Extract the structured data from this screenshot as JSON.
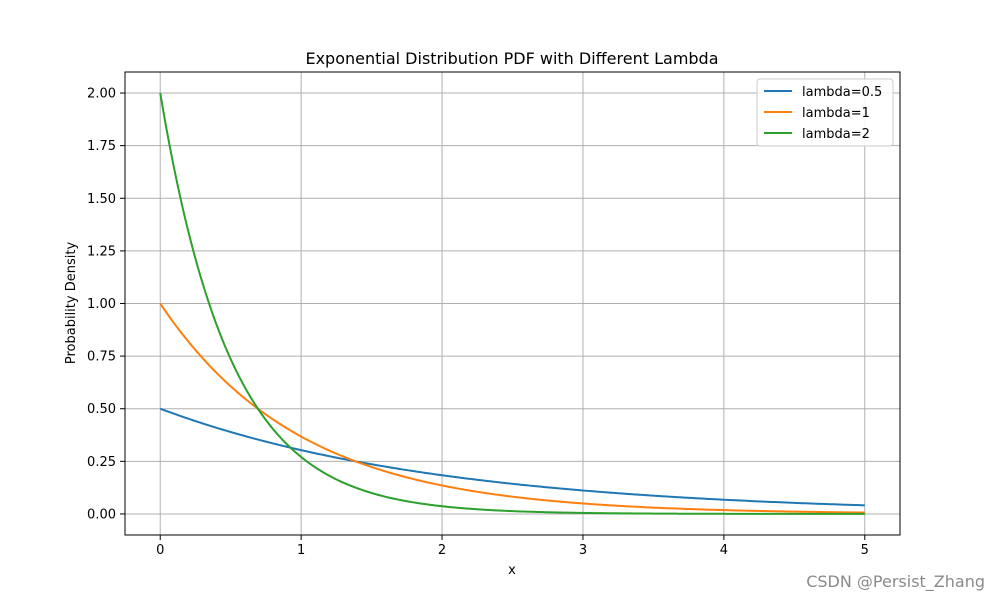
{
  "chart_data": {
    "type": "line",
    "title": "Exponential Distribution PDF with Different Lambda",
    "xlabel": "x",
    "ylabel": "Probability Density",
    "xlim": [
      -0.25,
      5.25
    ],
    "ylim": [
      -0.1,
      2.1
    ],
    "grid": true,
    "legend_position": "top-right",
    "x_ticks": [
      0,
      1,
      2,
      3,
      4,
      5
    ],
    "x_tick_labels": [
      "0",
      "1",
      "2",
      "3",
      "4",
      "5"
    ],
    "y_ticks": [
      0.0,
      0.25,
      0.5,
      0.75,
      1.0,
      1.25,
      1.5,
      1.75,
      2.0
    ],
    "y_tick_labels": [
      "0.00",
      "0.25",
      "0.50",
      "0.75",
      "1.00",
      "1.25",
      "1.50",
      "1.75",
      "2.00"
    ],
    "x": [
      0,
      0.25,
      0.5,
      0.75,
      1.0,
      1.25,
      1.5,
      1.75,
      2.0,
      2.25,
      2.5,
      2.75,
      3.0,
      3.25,
      3.5,
      3.75,
      4.0,
      4.25,
      4.5,
      4.75,
      5.0
    ],
    "series": [
      {
        "name": "lambda=0.5",
        "color": "#1f77b4",
        "values": [
          0.5,
          0.441,
          0.389,
          0.344,
          0.303,
          0.268,
          0.236,
          0.208,
          0.184,
          0.162,
          0.143,
          0.126,
          0.112,
          0.098,
          0.087,
          0.077,
          0.068,
          0.06,
          0.053,
          0.047,
          0.041
        ]
      },
      {
        "name": "lambda=1",
        "color": "#ff7f0e",
        "values": [
          1.0,
          0.779,
          0.607,
          0.472,
          0.368,
          0.287,
          0.223,
          0.174,
          0.135,
          0.105,
          0.082,
          0.064,
          0.05,
          0.039,
          0.03,
          0.024,
          0.018,
          0.014,
          0.011,
          0.009,
          0.007
        ]
      },
      {
        "name": "lambda=2",
        "color": "#2ca02c",
        "values": [
          2.0,
          1.213,
          0.736,
          0.446,
          0.271,
          0.164,
          0.1,
          0.06,
          0.037,
          0.022,
          0.013,
          0.008,
          0.005,
          0.003,
          0.002,
          0.001,
          0.001,
          0.0,
          0.0,
          0.0,
          0.0
        ]
      }
    ]
  },
  "watermark": "CSDN @Persist_Zhang"
}
